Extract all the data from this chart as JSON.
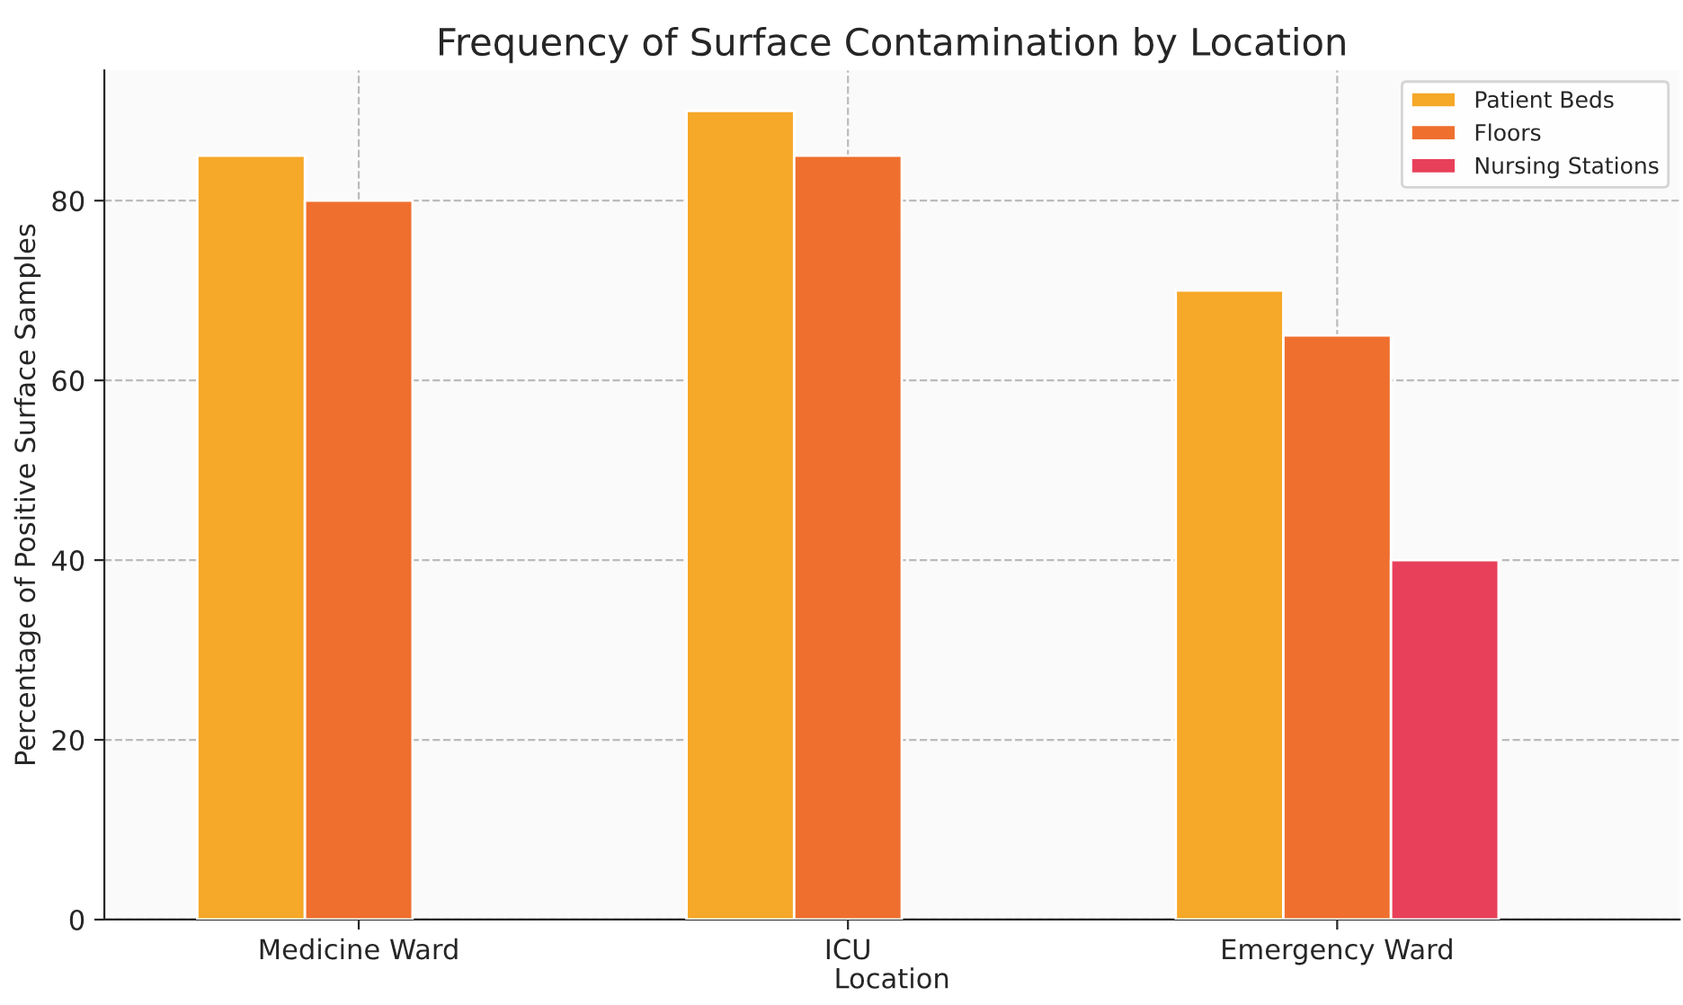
{
  "chart_data": {
    "type": "bar",
    "title": "Frequency of Surface Contamination by Location",
    "xlabel": "Location",
    "ylabel": "Percentage of Positive Surface Samples",
    "categories": [
      "Medicine Ward",
      "ICU",
      "Emergency Ward"
    ],
    "series": [
      {
        "name": "Patient Beds",
        "color": "#f6a828",
        "values": [
          85,
          90,
          70
        ]
      },
      {
        "name": "Floors",
        "color": "#ef6f2e",
        "values": [
          80,
          85,
          65
        ]
      },
      {
        "name": "Nursing Stations",
        "color": "#e8405a",
        "values": [
          null,
          null,
          40
        ]
      }
    ],
    "ylim": [
      0,
      94.5
    ],
    "yticks": [
      0,
      20,
      40,
      60,
      80
    ],
    "grid": true,
    "legend": "top right"
  }
}
